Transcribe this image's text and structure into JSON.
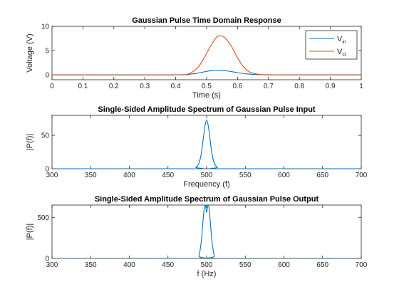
{
  "chart_data": [
    {
      "type": "line",
      "title": "Gaussian Pulse Time Domain Response",
      "xlabel": "Time (s)",
      "ylabel": "Voltage (V)",
      "xlim": [
        0,
        1
      ],
      "ylim": [
        -1,
        10
      ],
      "xticks": [
        "0",
        "0.1",
        "0.2",
        "0.3",
        "0.4",
        "0.5",
        "0.6",
        "0.7",
        "0.8",
        "0.9",
        "1"
      ],
      "yticks": [
        "0",
        "5",
        "10"
      ],
      "grid": false,
      "legend_position": "top-right",
      "series": [
        {
          "legend_base": "V",
          "legend_sub": "in",
          "color": "#0072BD",
          "x": [
            0,
            0.35,
            0.4,
            0.44,
            0.47,
            0.5,
            0.52,
            0.535,
            0.55,
            0.57,
            0.6,
            0.63,
            0.66,
            0.7,
            0.8,
            1
          ],
          "y": [
            0,
            0,
            0.02,
            0.1,
            0.35,
            0.72,
            0.93,
            0.98,
            0.95,
            0.78,
            0.45,
            0.2,
            0.08,
            0.03,
            0.01,
            0.02
          ]
        },
        {
          "legend_base": "V",
          "legend_sub": "O",
          "color": "#D95319",
          "x": [
            0,
            0.4,
            0.44,
            0.47,
            0.49,
            0.51,
            0.525,
            0.535,
            0.545,
            0.56,
            0.58,
            0.6,
            0.62,
            0.64,
            0.67,
            0.7,
            0.8,
            1
          ],
          "y": [
            0,
            0,
            0.2,
            1.4,
            3.3,
            5.6,
            7.2,
            7.9,
            8.05,
            7.6,
            5.9,
            3.5,
            1.6,
            0.55,
            0.1,
            0,
            0,
            0
          ]
        }
      ]
    },
    {
      "type": "line",
      "title": "Single-Sided Amplitude Spectrum of Gaussian Pulse Input",
      "xlabel": "Frequency (f)",
      "ylabel": "|P(f)|",
      "xlim": [
        300,
        700
      ],
      "ylim": [
        0,
        80
      ],
      "xticks": [
        "300",
        "350",
        "400",
        "450",
        "500",
        "550",
        "600",
        "650",
        "700"
      ],
      "yticks": [
        "0",
        "50"
      ],
      "grid": false,
      "series": [
        {
          "color": "#0072BD",
          "x": [
            300,
            480,
            486,
            490,
            493,
            496,
            498,
            500,
            502,
            504,
            507,
            510,
            514,
            520,
            700
          ],
          "y": [
            0,
            0,
            2,
            8,
            22,
            48,
            65,
            73,
            65,
            48,
            22,
            8,
            2,
            0,
            0
          ]
        }
      ]
    },
    {
      "type": "line",
      "title": "Single-Sided Amplitude Spectrum of Gaussian Pulse Output",
      "xlabel": "f (Hz)",
      "ylabel": "|P(f)|",
      "xlim": [
        300,
        700
      ],
      "ylim": [
        0,
        650
      ],
      "xticks": [
        "300",
        "350",
        "400",
        "450",
        "500",
        "550",
        "600",
        "650",
        "700"
      ],
      "yticks": [
        "0",
        "500"
      ],
      "grid": false,
      "series": [
        {
          "color": "#0072BD",
          "x": [
            300,
            486,
            490,
            493,
            495,
            497,
            498.5,
            500,
            501.5,
            503,
            505,
            507,
            510,
            514,
            700
          ],
          "y": [
            0,
            0,
            30,
            200,
            420,
            620,
            650,
            560,
            650,
            620,
            420,
            200,
            30,
            0,
            0
          ]
        }
      ]
    }
  ]
}
